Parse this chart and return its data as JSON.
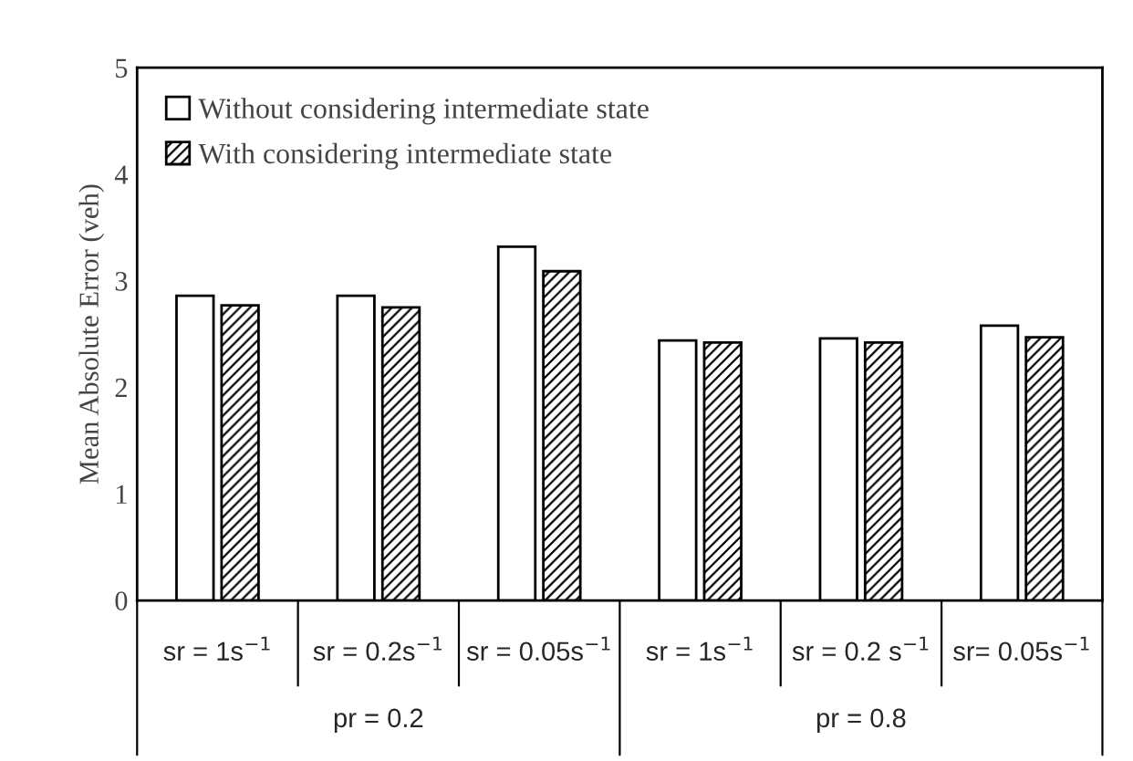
{
  "chart_data": {
    "type": "bar",
    "ylabel": "Mean Absolute Error (veh)",
    "categories": [
      "sr = 1s$^{−1}$",
      "sr = 0.2s$^{−1}$",
      "sr = 0.05s$^{−1}$",
      "sr = 1s$^{−1}$",
      "sr = 0.2 s$^{−1}$",
      "sr= 0.05s$^{−1}$"
    ],
    "series": [
      {
        "name": "Without considering intermediate state",
        "color": "#ffffff",
        "values": [
          2.86,
          2.86,
          3.32,
          2.44,
          2.46,
          2.58
        ]
      },
      {
        "name": "With considering intermediate state",
        "color": "#000000",
        "values": [
          2.77,
          2.75,
          3.09,
          2.42,
          2.42,
          2.47
        ]
      }
    ],
    "annotations": [
      "pr = 0.2",
      "pr = 0.8"
    ],
    "ylim": [
      0,
      5
    ],
    "yticks": [
      0,
      1,
      2,
      3,
      4,
      5
    ],
    "grid": false,
    "legend": "top left"
  }
}
